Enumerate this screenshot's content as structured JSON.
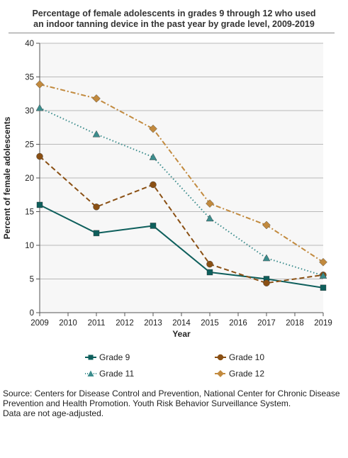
{
  "chart_data": {
    "type": "line",
    "title": "Percentage of female adolescents in grades 9 through 12 who used an indoor tanning device in the past year by grade level, 2009-2019",
    "title_lines": [
      "Percentage of female adolescents in grades 9 through 12 who used",
      "an indoor tanning device in the past year by grade level, 2009-2019"
    ],
    "xlabel": "Year",
    "ylabel": "Percent of female adolescents",
    "x_ticks": [
      2009,
      2010,
      2011,
      2012,
      2013,
      2014,
      2015,
      2016,
      2017,
      2018,
      2019
    ],
    "y_ticks": [
      0,
      5,
      10,
      15,
      20,
      25,
      30,
      35,
      40
    ],
    "xlim": [
      2009,
      2019
    ],
    "ylim": [
      0,
      40
    ],
    "grid": "horizontal",
    "legend_position": "bottom",
    "plot_background": "#f7f7f7",
    "series": [
      {
        "name": "Grade 9",
        "x": [
          2009,
          2011,
          2013,
          2015,
          2017,
          2019
        ],
        "values": [
          16.0,
          11.8,
          12.9,
          6.0,
          5.0,
          3.7
        ],
        "color": "#0e5f5c",
        "marker": "square",
        "dash": "solid"
      },
      {
        "name": "Grade 10",
        "x": [
          2009,
          2011,
          2013,
          2015,
          2017,
          2019
        ],
        "values": [
          23.2,
          15.7,
          19.0,
          7.2,
          4.4,
          5.6
        ],
        "color": "#8a5014",
        "marker": "circle",
        "dash": "dashed"
      },
      {
        "name": "Grade 11",
        "x": [
          2009,
          2011,
          2013,
          2015,
          2017,
          2019
        ],
        "values": [
          30.4,
          26.5,
          23.1,
          14.0,
          8.1,
          5.5
        ],
        "color": "#3c8d8d",
        "marker": "triangle",
        "dash": "dotted"
      },
      {
        "name": "Grade 12",
        "x": [
          2009,
          2011,
          2013,
          2015,
          2017,
          2019
        ],
        "values": [
          33.9,
          31.8,
          27.3,
          16.2,
          13.0,
          7.5
        ],
        "color": "#c28a3e",
        "marker": "diamond",
        "dash": "dashdot"
      }
    ]
  },
  "source_lines": [
    "Source: Centers for Disease Control and Prevention, National Center for Chronic Disease",
    "Prevention and Health Promotion. Youth Risk Behavior Surveillance System.",
    "Data are not age-adjusted."
  ]
}
